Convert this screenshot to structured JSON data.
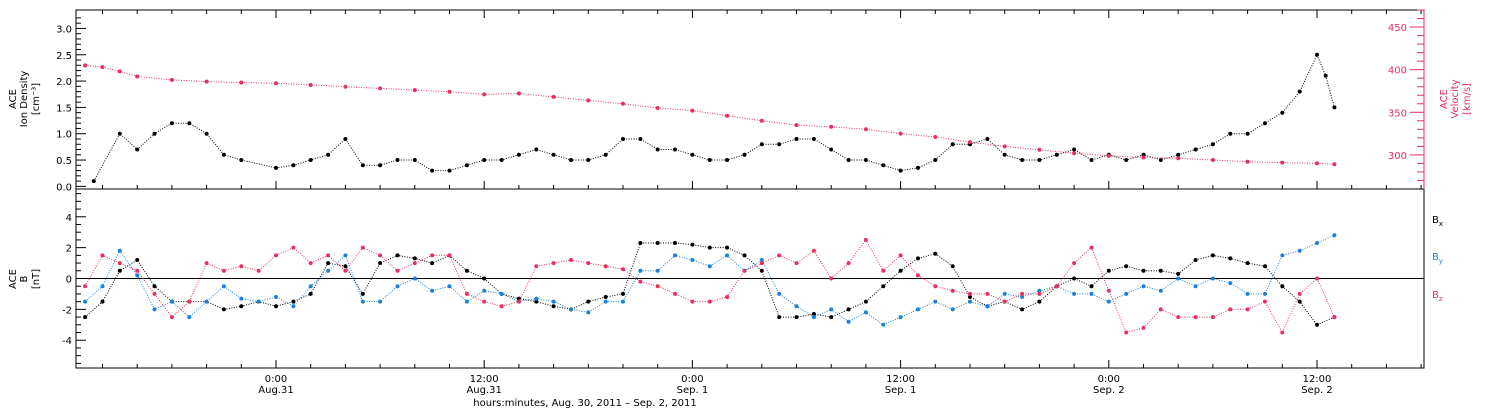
{
  "colors": {
    "black": "#000000",
    "pink": "#e8305e",
    "blue": "#1a82dc",
    "axis": "#000000"
  },
  "xaxis": {
    "title": "hours:minutes, Aug. 30, 2011 – Sep.  2, 2011",
    "ticks": [
      {
        "time": "0:00",
        "date": "Aug.31",
        "h": 0
      },
      {
        "time": "12:00",
        "date": "Aug.31",
        "h": 12
      },
      {
        "time": "0:00",
        "date": "Sep. 1",
        "h": 24
      },
      {
        "time": "12:00",
        "date": "Sep. 1",
        "h": 36
      },
      {
        "time": "0:00",
        "date": "Sep. 2",
        "h": 48
      },
      {
        "time": "12:00",
        "date": "Sep. 2",
        "h": 60
      }
    ]
  },
  "chart_data": [
    {
      "type": "scatter",
      "panel": "top",
      "ylabel_left": [
        "ACE",
        "Ion Density",
        "[cm⁻³]"
      ],
      "ylabel_right": [
        "ACE",
        "Velocity",
        "[km/s]"
      ],
      "ylim_left": [
        -0.05,
        3.35
      ],
      "ylim_right": [
        260,
        470
      ],
      "left_ticks": [
        "0.0",
        "0.5",
        "1.0",
        "1.5",
        "2.0",
        "2.5",
        "3.0"
      ],
      "right_ticks": [
        "300",
        "350",
        "400",
        "450"
      ],
      "series": [
        {
          "color": "black",
          "axis": "left",
          "x_hours": [
            -10.5,
            -9,
            -8,
            -7,
            -6,
            -5,
            -4,
            -3,
            -2,
            0,
            1,
            2,
            3,
            4,
            5,
            6,
            7,
            8,
            9,
            10,
            11,
            12,
            13,
            14,
            15,
            16,
            17,
            18,
            19,
            20,
            21,
            22,
            23,
            24,
            25,
            26,
            27,
            28,
            29,
            30,
            31,
            32,
            33,
            34,
            35,
            36,
            37,
            38,
            39,
            40,
            41,
            42,
            43,
            44,
            45,
            46,
            47,
            48,
            49,
            50,
            51,
            52,
            53,
            54,
            55,
            56,
            57,
            58,
            59,
            60,
            60.5,
            61
          ],
          "values": [
            0.1,
            1.0,
            0.7,
            1.0,
            1.2,
            1.2,
            1.0,
            0.6,
            0.5,
            0.35,
            0.4,
            0.5,
            0.6,
            0.9,
            0.4,
            0.4,
            0.5,
            0.5,
            0.3,
            0.3,
            0.4,
            0.5,
            0.5,
            0.6,
            0.7,
            0.6,
            0.5,
            0.5,
            0.6,
            0.9,
            0.9,
            0.7,
            0.7,
            0.6,
            0.5,
            0.5,
            0.6,
            0.8,
            0.8,
            0.9,
            0.9,
            0.7,
            0.5,
            0.5,
            0.4,
            0.3,
            0.35,
            0.5,
            0.8,
            0.8,
            0.9,
            0.6,
            0.5,
            0.5,
            0.6,
            0.7,
            0.5,
            0.6,
            0.5,
            0.6,
            0.5,
            0.6,
            0.7,
            0.8,
            1.0,
            1.0,
            1.2,
            1.4,
            1.8,
            2.5,
            2.1,
            1.5
          ]
        },
        {
          "color": "pink",
          "axis": "right",
          "x_hours": [
            -11,
            -10,
            -9,
            -8,
            -6,
            -4,
            -2,
            0,
            2,
            4,
            6,
            8,
            10,
            12,
            14,
            16,
            18,
            20,
            22,
            24,
            26,
            28,
            30,
            32,
            34,
            36,
            38,
            40,
            42,
            44,
            46,
            48,
            50,
            52,
            54,
            56,
            58,
            60,
            61
          ],
          "values": [
            405,
            403,
            398,
            392,
            388,
            386,
            385,
            384,
            382,
            380,
            378,
            376,
            374,
            371,
            372,
            368,
            364,
            360,
            355,
            352,
            346,
            340,
            335,
            333,
            330,
            325,
            321,
            315,
            310,
            306,
            302,
            299,
            297,
            296,
            294,
            292,
            291,
            290,
            289
          ]
        }
      ]
    },
    {
      "type": "scatter",
      "panel": "bottom",
      "ylabel_left": [
        "ACE",
        "B",
        "[nT]"
      ],
      "ylim_left": [
        -5.8,
        5.8
      ],
      "left_ticks": [
        "-4",
        "-2",
        "0",
        "2",
        "4"
      ],
      "series": [
        {
          "name": "Bx",
          "label_main": "B",
          "label_sub": "x",
          "color": "black",
          "x_hours": [
            -11,
            -10,
            -9,
            -8,
            -7,
            -6,
            -5,
            -4,
            -3,
            -2,
            -1,
            0,
            1,
            2,
            3,
            4,
            5,
            6,
            7,
            8,
            9,
            10,
            11,
            12,
            13,
            14,
            15,
            16,
            17,
            18,
            19,
            20,
            21,
            22,
            23,
            24,
            25,
            26,
            27,
            28,
            29,
            30,
            31,
            32,
            33,
            34,
            35,
            36,
            37,
            38,
            39,
            40,
            41,
            42,
            43,
            44,
            45,
            46,
            47,
            48,
            49,
            50,
            51,
            52,
            53,
            54,
            55,
            56,
            57,
            58,
            59,
            60,
            61
          ],
          "values": [
            -2.5,
            -1.5,
            0.5,
            1.2,
            -0.5,
            -1.5,
            -1.5,
            -1.5,
            -2.0,
            -1.8,
            -1.5,
            -1.8,
            -1.5,
            -1.0,
            1.0,
            0.8,
            -1.0,
            1.0,
            1.5,
            1.3,
            1.0,
            1.5,
            0.5,
            0.0,
            -1.0,
            -1.3,
            -1.5,
            -1.8,
            -2.0,
            -1.5,
            -1.2,
            -1.0,
            2.3,
            2.3,
            2.3,
            2.2,
            2.0,
            2.0,
            1.5,
            0.5,
            -2.5,
            -2.5,
            -2.3,
            -2.5,
            -2.0,
            -1.5,
            -0.5,
            0.5,
            1.3,
            1.6,
            0.8,
            -1.2,
            -1.8,
            -1.5,
            -2.0,
            -1.5,
            -0.5,
            0.0,
            -0.5,
            0.5,
            0.8,
            0.5,
            0.5,
            0.3,
            1.2,
            1.5,
            1.3,
            1.0,
            0.8,
            -0.5,
            -1.5,
            -3.0,
            -2.5
          ]
        },
        {
          "name": "By",
          "label_main": "B",
          "label_sub": "y",
          "color": "blue",
          "x_hours": [
            -11,
            -10,
            -9,
            -8,
            -7,
            -6,
            -5,
            -4,
            -3,
            -2,
            -1,
            0,
            1,
            2,
            3,
            4,
            5,
            6,
            7,
            8,
            9,
            10,
            11,
            12,
            13,
            14,
            15,
            16,
            17,
            18,
            19,
            20,
            21,
            22,
            23,
            24,
            25,
            26,
            27,
            28,
            29,
            30,
            31,
            32,
            33,
            34,
            35,
            36,
            37,
            38,
            39,
            40,
            41,
            42,
            43,
            44,
            45,
            46,
            47,
            48,
            49,
            50,
            51,
            52,
            53,
            54,
            55,
            56,
            57,
            58,
            59,
            60,
            61
          ],
          "values": [
            -1.5,
            -0.5,
            1.8,
            0.2,
            -2.0,
            -1.5,
            -2.5,
            -1.5,
            -0.5,
            -1.3,
            -1.5,
            -1.2,
            -1.8,
            -0.5,
            0.5,
            1.5,
            -1.5,
            -1.5,
            -0.5,
            0.0,
            -0.8,
            -0.5,
            -1.5,
            -0.8,
            -1.0,
            -1.5,
            -1.3,
            -1.5,
            -2.0,
            -2.2,
            -1.5,
            -1.5,
            0.5,
            0.5,
            1.5,
            1.2,
            0.8,
            1.5,
            0.5,
            1.2,
            -1.0,
            -1.8,
            -2.5,
            -2.0,
            -2.8,
            -2.2,
            -3.0,
            -2.5,
            -2.0,
            -1.5,
            -2.0,
            -1.5,
            -1.8,
            -1.0,
            -1.2,
            -0.8,
            -0.5,
            -1.0,
            -1.0,
            -1.5,
            -1.0,
            -0.5,
            -0.8,
            0.0,
            -0.5,
            0.0,
            -0.3,
            -1.0,
            -1.0,
            1.5,
            1.8,
            2.3,
            2.8
          ]
        },
        {
          "name": "Bz",
          "label_main": "B",
          "label_sub": "z",
          "color": "pink",
          "x_hours": [
            -11,
            -10,
            -9,
            -8,
            -7,
            -6,
            -5,
            -4,
            -3,
            -2,
            -1,
            0,
            1,
            2,
            3,
            4,
            5,
            6,
            7,
            8,
            9,
            10,
            11,
            12,
            13,
            14,
            15,
            16,
            17,
            18,
            19,
            20,
            21,
            22,
            23,
            24,
            25,
            26,
            27,
            28,
            29,
            30,
            31,
            32,
            33,
            34,
            35,
            36,
            37,
            38,
            39,
            40,
            41,
            42,
            43,
            44,
            45,
            46,
            47,
            48,
            49,
            50,
            51,
            52,
            53,
            54,
            55,
            56,
            57,
            58,
            59,
            60,
            61
          ],
          "values": [
            -0.5,
            1.5,
            1.0,
            0.5,
            -1.0,
            -2.5,
            -1.5,
            1.0,
            0.5,
            0.8,
            0.5,
            1.5,
            2.0,
            1.0,
            1.5,
            0.5,
            2.0,
            1.5,
            0.5,
            1.0,
            1.5,
            1.5,
            -1.0,
            -1.5,
            -1.8,
            -1.5,
            0.8,
            1.0,
            1.2,
            1.0,
            0.8,
            0.6,
            -0.2,
            -0.5,
            -1.0,
            -1.5,
            -1.5,
            -1.2,
            0.5,
            1.0,
            1.5,
            1.0,
            1.8,
            0.0,
            1.0,
            2.5,
            0.5,
            1.5,
            0.2,
            -0.5,
            -0.8,
            -1.0,
            -1.0,
            -1.5,
            -1.0,
            -1.0,
            -0.5,
            1.0,
            2.0,
            -0.8,
            -3.5,
            -3.2,
            -2.0,
            -2.5,
            -2.5,
            -2.5,
            -2.0,
            -2.0,
            -1.5,
            -3.5,
            -1.0,
            0.0,
            -2.5
          ]
        }
      ]
    }
  ]
}
